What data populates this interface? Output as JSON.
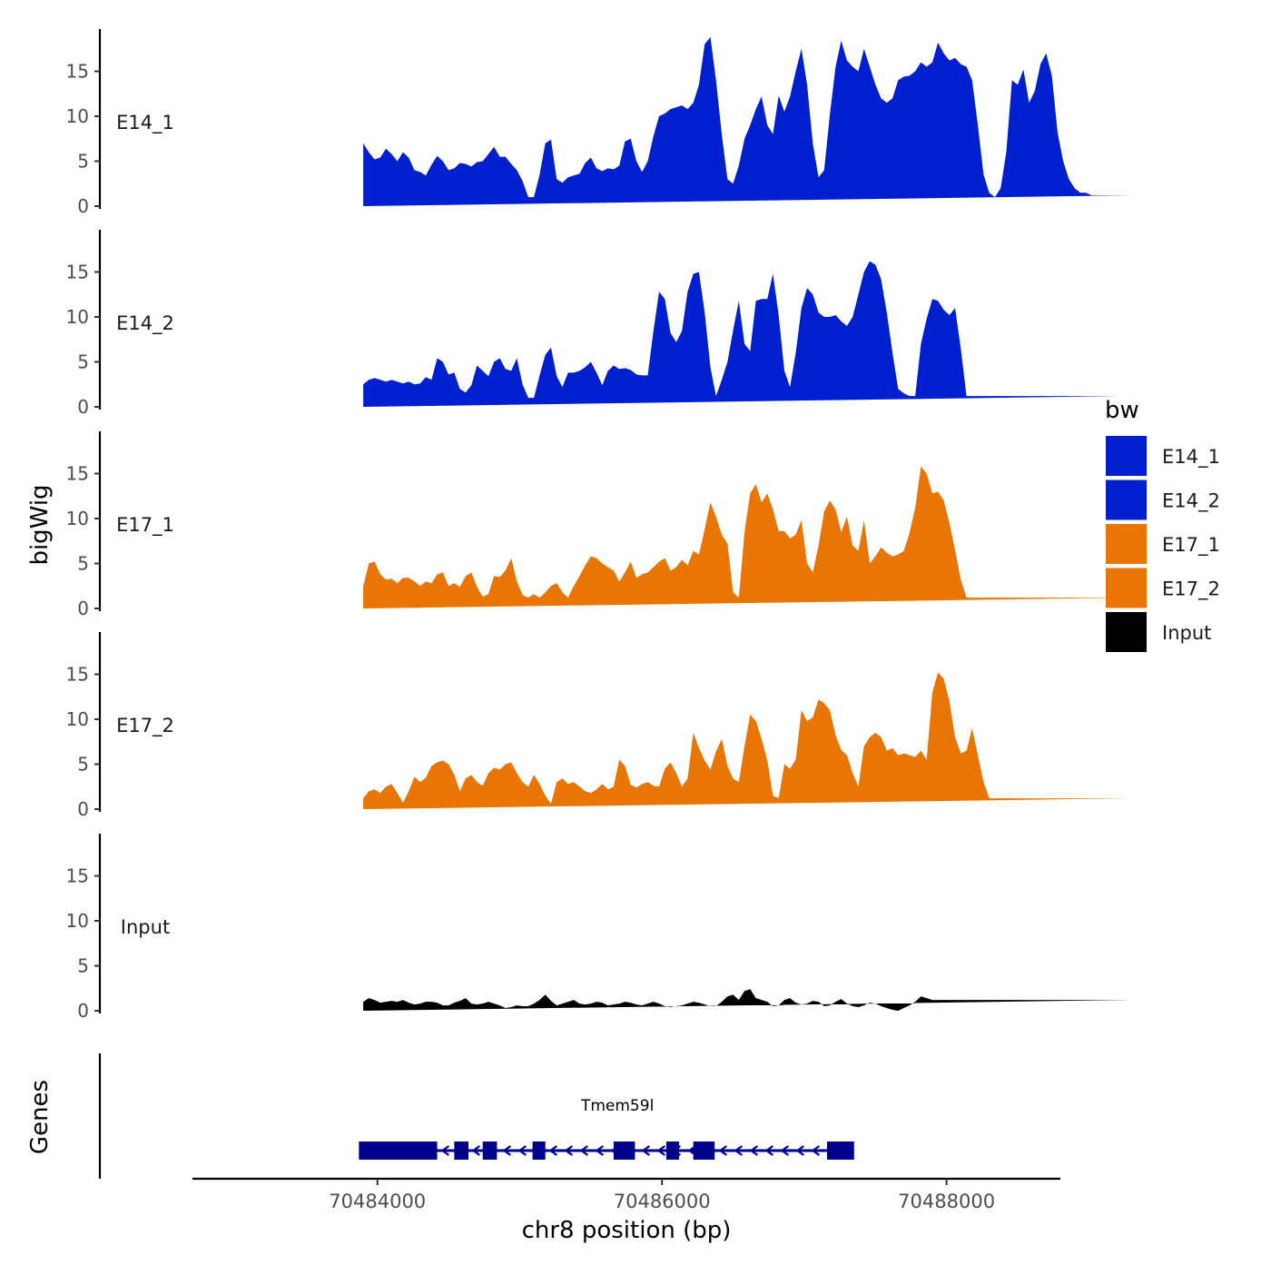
{
  "colors": {
    "E14": "#0020CF",
    "E17": "#E87504",
    "Input": "#000000",
    "gene": "#00008B",
    "axis": "#000000"
  },
  "chart_data": {
    "type": "area",
    "title": "",
    "ylabel": "bigWig",
    "xlabel": "chr8 position (bp)",
    "genes_label": "Genes",
    "xlim": [
      70482700,
      70488800
    ],
    "ylim": [
      0,
      19.5
    ],
    "x_ticks": [
      70484000,
      70486000,
      70488000
    ],
    "x_tick_labels": [
      "70484000",
      "70486000",
      "70488000"
    ],
    "y_ticks": [
      0,
      5,
      10,
      15
    ],
    "y_tick_labels": [
      "0",
      "5",
      "10",
      "15"
    ],
    "track_x": [
      70483900,
      70483940,
      70483980,
      70484020,
      70484060,
      70484100,
      70484140,
      70484180,
      70484220,
      70484260,
      70484300,
      70484340,
      70484380,
      70484420,
      70484460,
      70484500,
      70484540,
      70484580,
      70484620,
      70484660,
      70484700,
      70484740,
      70484780,
      70484820,
      70484860,
      70484900,
      70484940,
      70484980,
      70485020,
      70485060,
      70485100,
      70485140,
      70485180,
      70485220,
      70485260,
      70485300,
      70485340,
      70485380,
      70485420,
      70485460,
      70485500,
      70485540,
      70485580,
      70485620,
      70485660,
      70485700,
      70485740,
      70485780,
      70485820,
      70485860,
      70485900,
      70485940,
      70485980,
      70486020,
      70486060,
      70486100,
      70486140,
      70486180,
      70486220,
      70486260,
      70486300,
      70486340,
      70486380,
      70486420,
      70486460,
      70486500,
      70486540,
      70486580,
      70486620,
      70486660,
      70486700,
      70486740,
      70486780,
      70486820,
      70486860,
      70486900,
      70486940,
      70486980,
      70487020,
      70487060,
      70487100,
      70487140,
      70487180,
      70487220,
      70487260,
      70487300,
      70487340,
      70487380,
      70487420,
      70487460,
      70487500,
      70487540,
      70487580,
      70487620,
      70487660,
      70487700,
      70487740,
      70487780,
      70487820,
      70487860,
      70487900,
      70487940,
      70487980,
      70488020,
      70488060,
      70488100,
      70488140,
      70488180,
      70488220,
      70488260,
      70488300,
      70488340,
      70488380,
      70488420,
      70488460,
      70488500,
      70488540,
      70488580,
      70488620,
      70488660,
      70488700,
      70488740,
      70488780,
      70488820,
      70488860,
      70488900,
      70488940,
      70488980,
      70489020,
      70489060,
      70489100,
      70489140,
      70489180,
      70489220,
      70489260,
      70489300,
      70489340
    ],
    "series": [
      {
        "name": "E14_1",
        "group": "E14",
        "values": [
          7.0,
          6.0,
          5.2,
          5.4,
          6.4,
          5.8,
          5.0,
          6.0,
          5.4,
          4.0,
          3.8,
          3.4,
          4.6,
          5.6,
          5.0,
          4.0,
          4.2,
          4.8,
          4.7,
          4.4,
          4.9,
          5.0,
          5.8,
          6.6,
          5.5,
          5.5,
          4.7,
          4.0,
          2.8,
          1.0,
          1.0,
          3.5,
          7.0,
          7.4,
          3.0,
          2.6,
          3.2,
          3.4,
          3.6,
          4.8,
          5.4,
          4.2,
          3.9,
          4.2,
          4.1,
          4.5,
          7.2,
          7.5,
          5.0,
          3.8,
          5.0,
          7.8,
          10.0,
          10.3,
          10.8,
          11.0,
          11.2,
          10.8,
          11.5,
          13.5,
          18.0,
          18.8,
          14.0,
          8.0,
          3.0,
          2.5,
          4.5,
          7.5,
          9.0,
          10.8,
          12.2,
          9.0,
          8.0,
          12.3,
          10.5,
          12.2,
          15.0,
          17.5,
          13.5,
          7.0,
          3.2,
          4.0,
          10.2,
          15.5,
          18.4,
          16.2,
          15.5,
          15.0,
          17.5,
          15.5,
          13.5,
          12.0,
          11.5,
          12.0,
          14.0,
          14.4,
          14.5,
          15.0,
          16.0,
          15.5,
          16.0,
          18.2,
          17.0,
          16.2,
          16.5,
          15.8,
          15.5,
          14.0,
          9.0,
          3.5,
          1.5,
          1.0,
          2.0,
          6.0,
          14.0,
          13.5,
          15.2,
          11.5,
          12.8,
          15.8,
          17.0,
          14.5,
          8.2,
          5.0,
          3.0,
          2.0,
          1.5,
          1.5,
          1.2,
          1.2,
          1.2,
          1.2,
          1.2,
          1.2,
          1.2,
          1.2
        ]
      },
      {
        "name": "E14_2",
        "group": "E14",
        "values": [
          2.5,
          3.0,
          3.2,
          3.0,
          2.8,
          3.0,
          2.8,
          2.6,
          2.8,
          2.5,
          2.6,
          3.3,
          3.0,
          5.4,
          5.0,
          3.6,
          3.8,
          2.0,
          1.6,
          2.4,
          4.6,
          4.0,
          3.4,
          5.0,
          5.4,
          4.2,
          4.0,
          5.4,
          2.5,
          1.0,
          1.0,
          3.5,
          5.8,
          6.6,
          3.4,
          2.2,
          3.8,
          3.8,
          4.0,
          4.4,
          5.0,
          3.8,
          2.4,
          4.0,
          4.6,
          4.2,
          4.3,
          4.1,
          3.6,
          3.5,
          3.5,
          8.5,
          12.8,
          12.0,
          8.2,
          7.2,
          8.4,
          12.8,
          14.8,
          15.0,
          10.5,
          4.4,
          1.2,
          3.0,
          5.0,
          8.5,
          11.8,
          7.0,
          6.2,
          11.8,
          12.0,
          12.0,
          14.8,
          10.2,
          4.0,
          2.2,
          6.0,
          11.0,
          13.2,
          12.5,
          10.5,
          10.0,
          10.0,
          10.2,
          9.5,
          9.0,
          10.0,
          12.5,
          15.0,
          16.2,
          15.8,
          14.2,
          10.5,
          6.0,
          2.0,
          1.5,
          1.2,
          1.2,
          7.0,
          9.8,
          12.0,
          11.8,
          10.8,
          10.2,
          11.0,
          6.5,
          1.2,
          1.2,
          1.2,
          1.2,
          1.2,
          1.2,
          1.2,
          1.2,
          1.2,
          1.2,
          1.2,
          1.2,
          1.2,
          1.2,
          1.2,
          1.2,
          1.2,
          1.2,
          1.2,
          1.2,
          1.2,
          1.2,
          1.2,
          1.2,
          1.2,
          1.2,
          1.2,
          1.2
        ]
      },
      {
        "name": "E17_1",
        "group": "E17",
        "values": [
          2.5,
          5.0,
          5.2,
          3.8,
          3.2,
          3.3,
          2.8,
          3.4,
          3.4,
          3.0,
          2.5,
          3.0,
          2.8,
          3.8,
          4.0,
          2.5,
          2.8,
          2.4,
          3.6,
          4.0,
          2.4,
          1.3,
          1.6,
          3.6,
          3.5,
          4.2,
          5.6,
          3.0,
          1.5,
          1.2,
          1.6,
          1.2,
          1.8,
          2.5,
          2.8,
          1.8,
          1.2,
          2.5,
          3.6,
          4.8,
          5.8,
          5.6,
          5.0,
          4.6,
          4.2,
          3.0,
          4.0,
          5.2,
          3.4,
          3.8,
          4.0,
          4.6,
          5.2,
          5.6,
          4.2,
          4.6,
          5.4,
          4.8,
          6.4,
          6.0,
          8.8,
          11.8,
          10.2,
          8.2,
          7.2,
          1.8,
          1.2,
          8.5,
          12.8,
          13.8,
          11.8,
          12.8,
          11.0,
          8.6,
          8.6,
          7.8,
          8.2,
          9.8,
          5.0,
          4.0,
          7.0,
          10.8,
          12.0,
          11.0,
          8.5,
          10.2,
          7.0,
          6.4,
          9.8,
          5.0,
          5.8,
          6.8,
          6.2,
          5.8,
          6.0,
          6.4,
          8.4,
          11.2,
          15.8,
          15.0,
          12.8,
          13.0,
          12.0,
          9.5,
          6.5,
          3.2,
          1.2,
          1.2,
          1.2,
          1.2,
          1.2,
          1.2,
          1.2,
          1.2,
          1.2,
          1.2,
          1.2,
          1.2,
          1.2,
          1.2,
          1.2,
          1.2,
          1.2,
          1.2,
          1.2,
          1.2,
          1.2,
          1.2,
          1.2,
          1.2,
          1.2,
          1.2,
          1.2,
          1.2,
          1.2,
          1.2
        ]
      },
      {
        "name": "E17_2",
        "group": "E17",
        "values": [
          1.2,
          2.0,
          2.2,
          1.8,
          2.5,
          2.8,
          1.8,
          0.7,
          2.0,
          3.6,
          3.0,
          3.5,
          4.8,
          5.2,
          5.4,
          5.0,
          3.8,
          2.0,
          3.4,
          3.8,
          3.0,
          2.6,
          4.0,
          4.6,
          4.4,
          5.0,
          5.2,
          4.0,
          3.0,
          2.5,
          3.8,
          2.8,
          1.5,
          0.6,
          3.0,
          3.4,
          2.8,
          3.0,
          2.5,
          2.0,
          1.8,
          2.2,
          2.8,
          2.2,
          2.5,
          5.5,
          4.8,
          2.7,
          2.4,
          2.8,
          3.0,
          2.6,
          2.5,
          4.5,
          5.2,
          4.0,
          2.5,
          3.4,
          8.5,
          6.8,
          5.4,
          4.4,
          6.4,
          7.8,
          4.8,
          3.4,
          3.0,
          7.0,
          10.5,
          9.8,
          7.8,
          5.4,
          1.5,
          1.2,
          5.0,
          4.5,
          5.5,
          11.0,
          9.8,
          10.2,
          12.2,
          11.8,
          11.0,
          8.2,
          6.6,
          6.0,
          4.0,
          2.5,
          7.0,
          8.0,
          8.5,
          8.0,
          6.5,
          6.8,
          6.0,
          6.2,
          6.0,
          5.8,
          6.5,
          5.5,
          13.0,
          15.2,
          14.5,
          12.0,
          8.0,
          6.2,
          6.5,
          9.0,
          6.0,
          3.0,
          1.2,
          1.2,
          1.2,
          1.2,
          1.2,
          1.2,
          1.2,
          1.2,
          1.2,
          1.2,
          1.2,
          1.2,
          1.2,
          1.2,
          1.2,
          1.2,
          1.2,
          1.2,
          1.2,
          1.2,
          1.2,
          1.2,
          1.2,
          1.2,
          1.2,
          1.2
        ]
      },
      {
        "name": "Input",
        "group": "Input",
        "values": [
          1.0,
          1.4,
          1.2,
          0.9,
          1.0,
          1.1,
          1.0,
          1.2,
          0.9,
          0.7,
          0.8,
          1.0,
          1.0,
          0.9,
          0.6,
          0.6,
          0.9,
          1.1,
          1.4,
          0.8,
          0.7,
          0.8,
          1.0,
          0.8,
          0.6,
          0.3,
          0.4,
          0.6,
          0.5,
          0.5,
          0.8,
          1.2,
          1.8,
          1.1,
          0.6,
          0.8,
          1.0,
          1.2,
          0.8,
          0.7,
          0.8,
          1.0,
          0.9,
          0.6,
          0.7,
          0.8,
          1.0,
          0.9,
          0.7,
          0.6,
          0.8,
          1.0,
          0.8,
          0.5,
          0.4,
          0.5,
          0.6,
          0.8,
          1.0,
          0.9,
          0.7,
          0.5,
          0.5,
          1.0,
          1.6,
          1.8,
          1.2,
          2.2,
          2.4,
          1.4,
          1.2,
          1.0,
          0.5,
          0.6,
          1.2,
          1.4,
          0.9,
          0.7,
          0.8,
          1.1,
          1.0,
          0.5,
          0.6,
          1.0,
          1.3,
          0.8,
          0.5,
          0.4,
          0.6,
          0.9,
          0.8,
          0.5,
          0.3,
          0.1,
          0.0,
          0.3,
          0.6,
          1.0,
          1.6,
          1.4,
          1.2,
          1.2,
          1.2,
          1.2,
          1.2,
          1.2,
          1.2,
          1.2,
          1.2,
          1.2,
          1.2,
          1.2,
          1.2,
          1.2,
          1.2,
          1.2,
          1.2,
          1.2,
          1.2,
          1.2,
          1.2,
          1.2,
          1.2,
          1.2,
          1.2,
          1.2,
          1.2,
          1.2,
          1.2,
          1.2,
          1.2,
          1.2,
          1.2,
          1.2,
          1.2,
          1.2
        ]
      }
    ],
    "genes": [
      {
        "name": "Tmem59l",
        "strand": "-",
        "start": 70483870,
        "end": 70487350,
        "exons": [
          [
            70483870,
            70484420
          ],
          [
            70484540,
            70484640
          ],
          [
            70484740,
            70484840
          ],
          [
            70485090,
            70485180
          ],
          [
            70485660,
            70485810
          ],
          [
            70486030,
            70486120
          ],
          [
            70486220,
            70486370
          ],
          [
            70487160,
            70487350
          ]
        ]
      }
    ],
    "legend": {
      "title": "bw",
      "position": "right",
      "entries": [
        {
          "label": "E14_1",
          "color": "#0020CF"
        },
        {
          "label": "E14_2",
          "color": "#0020CF"
        },
        {
          "label": "E17_1",
          "color": "#E87504"
        },
        {
          "label": "E17_2",
          "color": "#E87504"
        },
        {
          "label": "Input",
          "color": "#000000"
        }
      ]
    }
  }
}
